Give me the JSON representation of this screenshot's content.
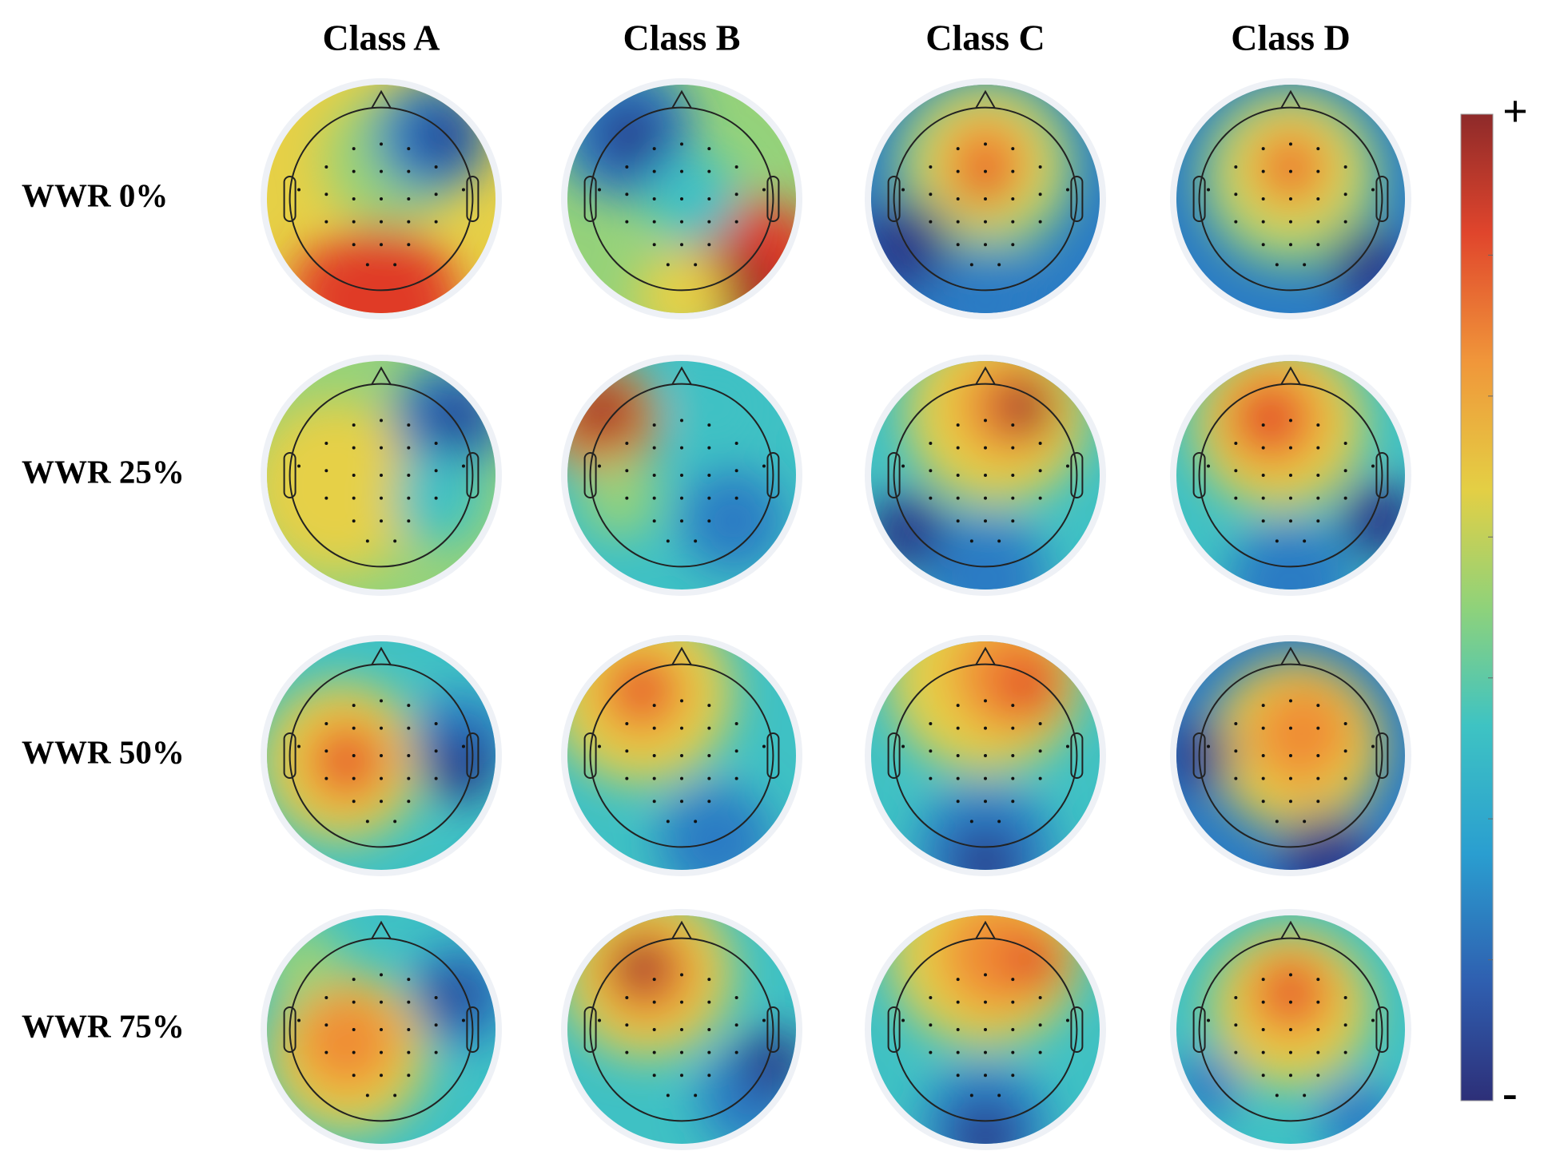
{
  "columns": [
    "Class A",
    "Class B",
    "Class C",
    "Class D"
  ],
  "rows": [
    "WWR 0%",
    "WWR 25%",
    "WWR 50%",
    "WWR 75%"
  ],
  "colorbar": {
    "max_label": "+",
    "min_label": "-"
  }
}
